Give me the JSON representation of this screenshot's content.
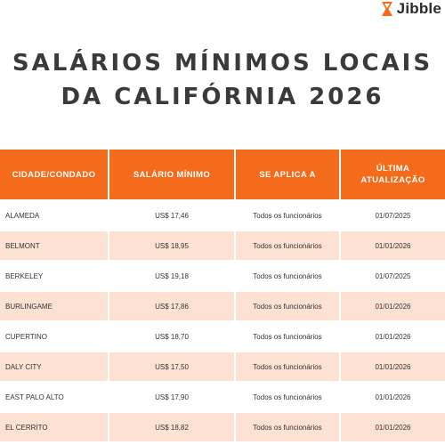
{
  "brand": {
    "logo_text": "Jibble",
    "accent": "#f46b1b"
  },
  "title": {
    "line1": "SALÁRIOS MÍNIMOS LOCAIS",
    "line2": "DA CALIFÓRNIA 2026"
  },
  "table": {
    "headers": [
      "CIDADE/CONDADO",
      "SALÁRIO MÍNIMO",
      "SE APLICA A",
      "ÚLTIMA ATUALIZAÇÃO"
    ],
    "rows": [
      [
        "ALAMEDA",
        "US$ 17,46",
        "Todos os funcionários",
        "01/07/2025"
      ],
      [
        "BELMONT",
        "US$ 18,95",
        "Todos os funcionários",
        "01/01/2026"
      ],
      [
        "BERKELEY",
        "US$ 19,18",
        "Todos os funcionários",
        "01/07/2025"
      ],
      [
        "BURLINGAME",
        "US$ 17,86",
        "Todos os funcionários",
        "01/01/2026"
      ],
      [
        "CUPERTINO",
        "US$ 18,70",
        "Todos os funcionários",
        "01/01/2026"
      ],
      [
        "DALY CITY",
        "US$ 17,50",
        "Todos os funcionários",
        "01/01/2026"
      ],
      [
        "EAST PALO ALTO",
        "US$ 17,90",
        "Todos os funcionários",
        "01/01/2026"
      ],
      [
        "EL CERRITO",
        "US$ 18,82",
        "Todos os funcionários",
        "01/01/2026"
      ]
    ]
  }
}
